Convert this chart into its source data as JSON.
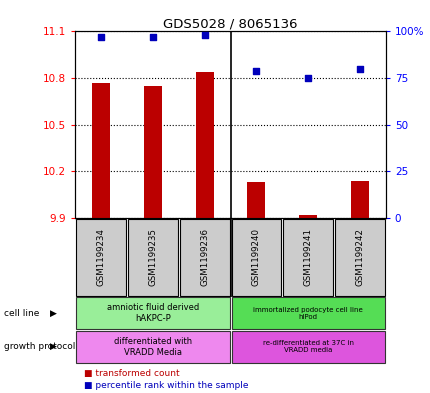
{
  "title": "GDS5028 / 8065136",
  "samples": [
    "GSM1199234",
    "GSM1199235",
    "GSM1199236",
    "GSM1199240",
    "GSM1199241",
    "GSM1199242"
  ],
  "bar_values": [
    10.77,
    10.75,
    10.84,
    10.13,
    9.92,
    10.14
  ],
  "bar_bottom": 9.9,
  "dot_values": [
    97,
    97,
    98,
    79,
    75,
    80
  ],
  "ylim_left": [
    9.9,
    11.1
  ],
  "ylim_right": [
    0,
    100
  ],
  "yticks_left": [
    9.9,
    10.2,
    10.5,
    10.8,
    11.1
  ],
  "yticks_right": [
    0,
    25,
    50,
    75,
    100
  ],
  "ytick_labels_right": [
    "0",
    "25",
    "50",
    "75",
    "100%"
  ],
  "bar_color": "#bb0000",
  "dot_color": "#0000bb",
  "cell_line_label1": "amniotic fluid derived\nhAKPC-P",
  "cell_line_label2": "immortalized podocyte cell line\nhIPod",
  "cell_line_color1": "#99ee99",
  "cell_line_color2": "#55dd55",
  "growth_label1": "differentiated with\nVRADD Media",
  "growth_label2": "re-differentiated at 37C in\nVRADD media",
  "growth_color1": "#ee88ee",
  "growth_color2": "#dd55dd",
  "sample_box_color": "#cccccc",
  "legend_red_label": "transformed count",
  "legend_blue_label": "percentile rank within the sample",
  "cell_line_arrow_label": "cell line",
  "growth_protocol_arrow_label": "growth protocol",
  "figsize": [
    4.31,
    3.93
  ],
  "dpi": 100
}
